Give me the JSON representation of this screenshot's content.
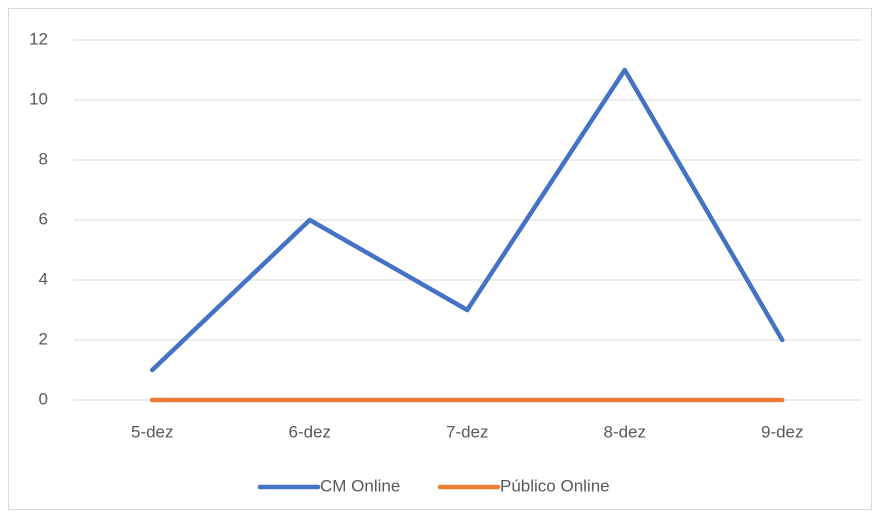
{
  "chart_data": {
    "type": "line",
    "categories": [
      "5-dez",
      "6-dez",
      "7-dez",
      "8-dez",
      "9-dez"
    ],
    "series": [
      {
        "name": "CM Online",
        "color": "#4472c4",
        "values": [
          1,
          6,
          3,
          11,
          2
        ]
      },
      {
        "name": "Público Online",
        "color": "#ed7d31",
        "values": [
          0,
          0,
          0,
          0,
          0
        ]
      }
    ],
    "ylim": [
      0,
      12
    ],
    "yticks": [
      0,
      2,
      4,
      6,
      8,
      10,
      12
    ],
    "grid": true,
    "legend": "bottom"
  }
}
